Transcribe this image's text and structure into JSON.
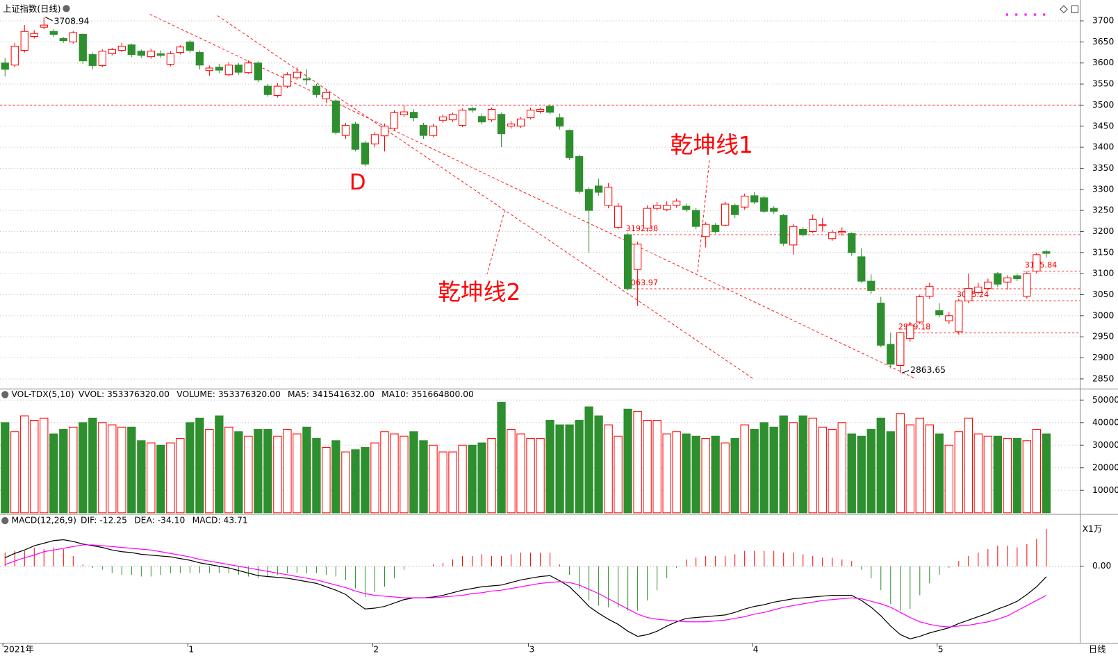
{
  "chart_data": [
    {
      "type": "candlestick",
      "title": "上证指数(日线)",
      "categories": [
        "2021年",
        null,
        null,
        null,
        null,
        null,
        null,
        null,
        null,
        null,
        null,
        null,
        null,
        null,
        null,
        null,
        null,
        null,
        null,
        "1",
        null,
        null,
        null,
        null,
        null,
        null,
        null,
        null,
        null,
        null,
        null,
        null,
        null,
        null,
        null,
        null,
        null,
        null,
        "2",
        null,
        null,
        null,
        null,
        null,
        null,
        null,
        null,
        null,
        null,
        null,
        null,
        null,
        null,
        null,
        "3",
        null,
        null,
        null,
        null,
        null,
        null,
        null,
        null,
        null,
        null,
        null,
        null,
        null,
        null,
        null,
        null,
        null,
        null,
        null,
        null,
        null,
        null,
        "4",
        null,
        null,
        null,
        null,
        null,
        null,
        null,
        null,
        null,
        null,
        null,
        null,
        null,
        null,
        null,
        null,
        null,
        null,
        "5",
        null,
        null,
        null,
        null,
        null,
        null,
        null,
        null,
        null,
        null,
        null
      ],
      "open": [
        3600,
        3595,
        3630,
        3663,
        3685,
        3675,
        3658,
        3650,
        3668,
        3620,
        3594,
        3622,
        3630,
        3643,
        3628,
        3615,
        3622,
        3597,
        3625,
        3650,
        3625,
        3582,
        3590,
        3572,
        3595,
        3577,
        3600,
        3545,
        3523,
        3545,
        3565,
        3562,
        3545,
        3515,
        3510,
        3428,
        3455,
        3410,
        3408,
        3427,
        3445,
        3477,
        3483,
        3452,
        3428,
        3464,
        3465,
        3452,
        3492,
        3473,
        3465,
        3478,
        3450,
        3450,
        3470,
        3485,
        3497,
        3470,
        3440,
        3378,
        3300,
        3308,
        3262,
        3210,
        3192.38,
        3110,
        3208,
        3255,
        3252,
        3262,
        3260,
        3250,
        3188,
        3215,
        3215,
        3262,
        3258,
        3285,
        3280,
        3255,
        3238,
        3168,
        3205,
        3200,
        3214,
        3183,
        3197,
        3195,
        3140,
        3082,
        3030,
        2932,
        2882,
        2946,
        2985,
        3046,
        3012,
        2988,
        2962,
        3035,
        3055,
        3065,
        3100,
        3080,
        3095,
        3046,
        3106,
        3152
      ],
      "high": [
        3612,
        3648,
        3690,
        3678,
        3708.94,
        3680,
        3662,
        3676,
        3670,
        3625,
        3632,
        3636,
        3648,
        3646,
        3632,
        3634,
        3630,
        3628,
        3642,
        3654,
        3630,
        3594,
        3598,
        3602,
        3600,
        3606,
        3604,
        3550,
        3552,
        3578,
        3590,
        3585,
        3550,
        3536,
        3514,
        3458,
        3460,
        3415,
        3436,
        3456,
        3488,
        3500,
        3490,
        3458,
        3455,
        3478,
        3482,
        3492,
        3496,
        3480,
        3494,
        3482,
        3462,
        3472,
        3494,
        3494,
        3502,
        3480,
        3442,
        3382,
        3305,
        3325,
        3315,
        3268,
        3196,
        3176,
        3262,
        3270,
        3272,
        3278,
        3266,
        3256,
        3222,
        3220,
        3270,
        3266,
        3290,
        3294,
        3285,
        3260,
        3242,
        3218,
        3210,
        3240,
        3232,
        3204,
        3210,
        3198,
        3160,
        3098,
        3045,
        2960,
        2962,
        2985,
        3050,
        3078,
        3030,
        3008,
        3040,
        3100,
        3078,
        3088,
        3104,
        3096,
        3100,
        3105.84,
        3150,
        3156
      ],
      "low": [
        3568,
        3590,
        3625,
        3658,
        3680,
        3662,
        3648,
        3646,
        3598,
        3585,
        3590,
        3618,
        3626,
        3614,
        3612,
        3610,
        3612,
        3592,
        3620,
        3624,
        3585,
        3570,
        3576,
        3568,
        3572,
        3574,
        3554,
        3520,
        3518,
        3540,
        3560,
        3548,
        3518,
        3505,
        3430,
        3420,
        3390,
        3355,
        3400,
        3390,
        3440,
        3472,
        3462,
        3420,
        3424,
        3458,
        3460,
        3448,
        3482,
        3454,
        3460,
        3400,
        3444,
        3446,
        3466,
        3480,
        3478,
        3442,
        3370,
        3290,
        3150,
        3285,
        3255,
        3205,
        3060,
        3023,
        3200,
        3250,
        3248,
        3256,
        3246,
        3205,
        3162,
        3195,
        3212,
        3232,
        3252,
        3265,
        3244,
        3242,
        3165,
        3145,
        3188,
        3196,
        3200,
        3178,
        3190,
        3142,
        3078,
        3052,
        2925,
        2875,
        2863.65,
        2938,
        2980,
        3040,
        2996,
        2980,
        2955,
        3030,
        3050,
        3060,
        3068,
        3062,
        3082,
        3040,
        3100,
        3138
      ],
      "close": [
        3585,
        3640,
        3675,
        3670,
        3690,
        3668,
        3653,
        3672,
        3605,
        3594,
        3628,
        3632,
        3640,
        3620,
        3618,
        3628,
        3618,
        3622,
        3638,
        3630,
        3595,
        3588,
        3583,
        3595,
        3578,
        3600,
        3560,
        3525,
        3545,
        3572,
        3578,
        3560,
        3525,
        3530,
        3435,
        3452,
        3395,
        3360,
        3430,
        3450,
        3482,
        3484,
        3470,
        3428,
        3450,
        3472,
        3478,
        3488,
        3488,
        3460,
        3490,
        3432,
        3455,
        3467,
        3488,
        3490,
        3483,
        3450,
        3375,
        3295,
        3250,
        3293,
        3305,
        3260,
        3063.97,
        3170,
        3255,
        3262,
        3262,
        3272,
        3252,
        3212,
        3217,
        3200,
        3265,
        3240,
        3284,
        3270,
        3248,
        3248,
        3172,
        3212,
        3192,
        3228,
        3216,
        3198,
        3200,
        3150,
        3082,
        3060,
        2930,
        2885,
        2960,
        2978,
        3045,
        3070,
        3002,
        3000,
        3035,
        3065,
        3068,
        3080,
        3075,
        3090,
        3088,
        3100,
        3145,
        3148
      ],
      "up_color": "#ff0000",
      "down_color": "#2e8f2e",
      "ylim": [
        2828,
        3736
      ],
      "yticks": [
        2850,
        2900,
        2950,
        3000,
        3050,
        3100,
        3150,
        3200,
        3250,
        3300,
        3350,
        3400,
        3450,
        3500,
        3550,
        3600,
        3650,
        3700
      ],
      "grid": true,
      "reference_line": 3500,
      "hlines": [
        3192.38,
        3105.84,
        3063.97,
        3035.24,
        2959.18
      ],
      "annotations": [
        "乾坤线1",
        "乾坤线2",
        "D"
      ]
    },
    {
      "type": "bar",
      "title": "VOL-TDX(5,10)",
      "legend": [
        "VVOL: 353376320.00",
        "VOLUME: 353376320.00",
        "MA5: 341541632.00",
        "MA10: 351664800.00"
      ],
      "values": [
        40000,
        36000,
        43000,
        41000,
        42000,
        35000,
        37000,
        38000,
        40000,
        42000,
        40000,
        39000,
        38000,
        38000,
        32000,
        31000,
        30000,
        31000,
        33000,
        40000,
        42000,
        37000,
        43000,
        38000,
        36000,
        34000,
        37000,
        37000,
        34000,
        37000,
        35000,
        38000,
        33000,
        29000,
        32000,
        27000,
        28000,
        29000,
        31000,
        36000,
        35000,
        34000,
        36000,
        32000,
        30000,
        27000,
        27000,
        30000,
        30000,
        31000,
        33000,
        49000,
        37000,
        35000,
        33000,
        33000,
        41000,
        39000,
        39000,
        41000,
        47000,
        43000,
        39000,
        34000,
        46000,
        45000,
        41000,
        41000,
        35000,
        36000,
        35000,
        34000,
        33000,
        34000,
        31000,
        33000,
        39000,
        37000,
        40000,
        38000,
        43000,
        40000,
        43000,
        42000,
        38000,
        37000,
        40000,
        35000,
        34000,
        37000,
        42000,
        36000,
        44000,
        39000,
        42000,
        39000,
        35000,
        30000,
        36000,
        42000,
        35000,
        34000,
        34000,
        33000,
        33000,
        32000,
        37000,
        35000
      ],
      "ylim": [
        0,
        54000
      ],
      "yticks": [
        10000,
        20000,
        30000,
        40000,
        50000
      ],
      "grid": true,
      "unit_label": "X1万"
    },
    {
      "type": "macd",
      "title": "MACD(12,26,9)",
      "legend": [
        "DIF: -12.25",
        "DEA: -34.10",
        "MACD: 43.71"
      ],
      "series": [
        {
          "color": "#000000",
          "values": [
            10,
            15,
            19,
            24,
            27,
            30,
            31,
            29,
            26,
            24,
            22,
            19,
            17,
            16,
            14,
            13,
            12,
            11,
            9,
            7,
            4,
            2,
            0,
            -2,
            -5,
            -8,
            -11,
            -12,
            -13,
            -14,
            -16,
            -18,
            -20,
            -24,
            -28,
            -33,
            -42,
            -50,
            -49,
            -47,
            -43,
            -39,
            -37,
            -37,
            -36,
            -34,
            -31,
            -28,
            -26,
            -24,
            -23,
            -22,
            -19,
            -16,
            -14,
            -12,
            -11,
            -17,
            -24,
            -35,
            -47,
            -55,
            -62,
            -68,
            -76,
            -82,
            -80,
            -76,
            -70,
            -65,
            -61,
            -60,
            -59,
            -58,
            -57,
            -54,
            -50,
            -47,
            -45,
            -42,
            -40,
            -38,
            -37,
            -36,
            -35,
            -34,
            -34,
            -34,
            -40,
            -48,
            -58,
            -70,
            -80,
            -85,
            -82,
            -78,
            -75,
            -72,
            -67,
            -63,
            -59,
            -55,
            -50,
            -46,
            -41,
            -33,
            -24,
            -12.25
          ]
        },
        {
          "color": "#ff00ff",
          "values": [
            2,
            6,
            10,
            13,
            17,
            19,
            21,
            23,
            25,
            25,
            24,
            23,
            22,
            21,
            20,
            19,
            17,
            15,
            13,
            11,
            8,
            6,
            4,
            2,
            0,
            -2,
            -4,
            -6,
            -8,
            -10,
            -12,
            -14,
            -16,
            -19,
            -22,
            -25,
            -29,
            -32,
            -34,
            -35,
            -36,
            -37,
            -37,
            -37,
            -37,
            -36,
            -35,
            -34,
            -32,
            -31,
            -29,
            -28,
            -26,
            -24,
            -22,
            -20,
            -19,
            -18,
            -19,
            -22,
            -27,
            -32,
            -38,
            -44,
            -50,
            -56,
            -60,
            -62,
            -63,
            -64,
            -65,
            -65,
            -65,
            -64,
            -63,
            -61,
            -59,
            -56,
            -54,
            -51,
            -48,
            -46,
            -44,
            -42,
            -40,
            -39,
            -38,
            -37,
            -38,
            -41,
            -44,
            -48,
            -54,
            -60,
            -65,
            -68,
            -70,
            -71,
            -70,
            -69,
            -67,
            -65,
            -62,
            -58,
            -52,
            -46,
            -40,
            -34.1
          ]
        },
        {
          "up_color": "#ff0000",
          "down_color": "#2e8f2e",
          "values": [
            16,
            18,
            18,
            22,
            20,
            22,
            20,
            12,
            2,
            -2,
            -4,
            -8,
            -10,
            -10,
            -12,
            -12,
            -10,
            -8,
            -8,
            -8,
            -8,
            -8,
            -8,
            -8,
            -10,
            -12,
            -14,
            -12,
            -10,
            -8,
            -8,
            -8,
            -8,
            -10,
            -12,
            -16,
            -26,
            -36,
            -30,
            -24,
            -14,
            -4,
            0,
            0,
            2,
            4,
            8,
            12,
            12,
            14,
            12,
            12,
            14,
            16,
            16,
            16,
            16,
            2,
            -10,
            -26,
            -40,
            -46,
            -48,
            -48,
            -52,
            -52,
            -40,
            -28,
            -14,
            -2,
            8,
            10,
            12,
            12,
            12,
            14,
            18,
            18,
            18,
            18,
            16,
            16,
            14,
            12,
            10,
            10,
            8,
            6,
            -4,
            -14,
            -28,
            -44,
            -52,
            -50,
            -34,
            -20,
            -10,
            -2,
            6,
            12,
            16,
            20,
            24,
            24,
            22,
            26,
            32,
            43.71
          ]
        }
      ],
      "ylim": [
        -90,
        60
      ],
      "yticks": [
        {
          "value": 0,
          "label": "0.00"
        }
      ],
      "grid": true,
      "period_label": "日线"
    }
  ]
}
